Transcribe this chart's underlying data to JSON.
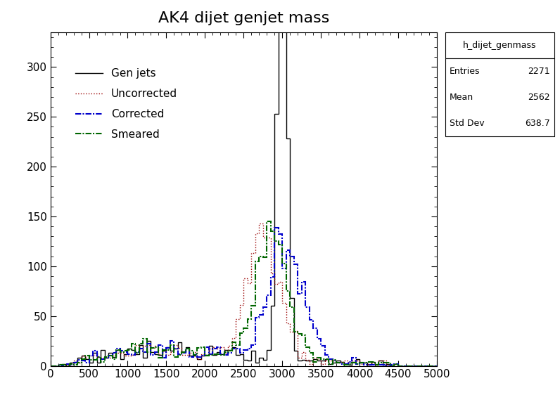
{
  "title": "AK4 dijet genjet mass",
  "xlim": [
    0,
    5000
  ],
  "ylim": [
    0,
    335
  ],
  "stats_box": {
    "name": "h_dijet_genmass",
    "entries": 2271,
    "mean": 2562,
    "std_dev": 638.7
  },
  "colors": {
    "gen": "#000000",
    "uncorrected": "#990000",
    "corrected": "#0000cc",
    "smeared": "#006600"
  },
  "bin_edges": [
    0,
    5000
  ],
  "n_bins": 100,
  "seed": 12345
}
